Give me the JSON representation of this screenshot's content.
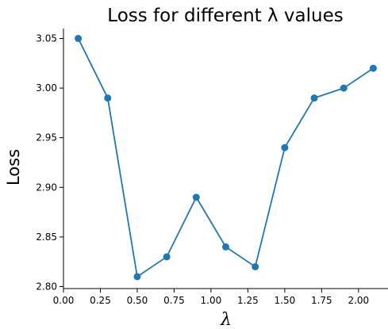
{
  "chart_data": {
    "type": "line",
    "title": "Loss for different λ values",
    "xlabel": "λ",
    "ylabel": "Loss",
    "xlim": [
      0.0,
      2.2
    ],
    "ylim": [
      2.798,
      3.06
    ],
    "x_ticks": [
      "0.00",
      "0.25",
      "0.50",
      "0.75",
      "1.00",
      "1.25",
      "1.50",
      "1.75",
      "2.00"
    ],
    "y_ticks": [
      "2.80",
      "2.85",
      "2.90",
      "2.95",
      "3.00",
      "3.05"
    ],
    "grid": false,
    "legend": "none",
    "color": "#1f77b4",
    "marker": "circle",
    "series": [
      {
        "x": [
          0.1,
          0.3,
          0.5,
          0.7,
          0.9,
          1.1,
          1.3,
          1.5,
          1.7,
          1.9,
          2.1
        ],
        "y": [
          3.05,
          2.99,
          2.81,
          2.83,
          2.89,
          2.84,
          2.82,
          2.94,
          2.99,
          3.0,
          3.02
        ]
      }
    ]
  }
}
